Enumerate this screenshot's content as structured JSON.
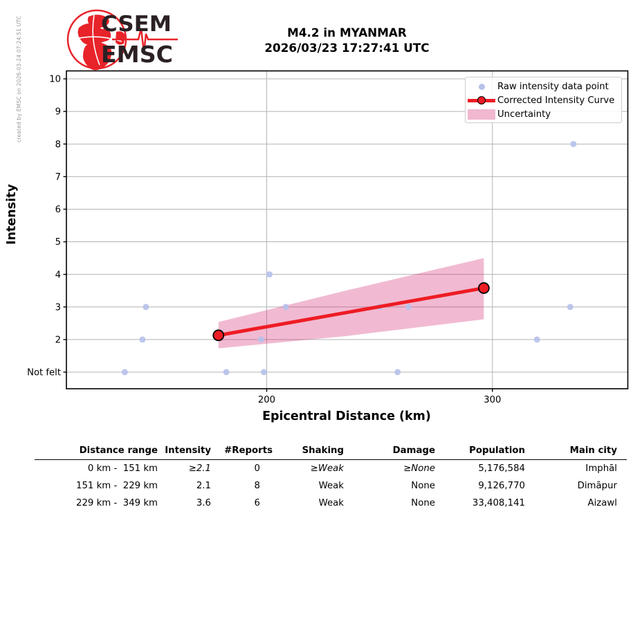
{
  "meta": {
    "created_by": "created by EMSC on 2026-03-24 07:24:51 UTC"
  },
  "logo": {
    "line1": "CSEM",
    "line2": "EMSC"
  },
  "title": {
    "line1": "M4.2 in MYANMAR",
    "line2": "2026/03/23 17:27:41 UTC"
  },
  "colors": {
    "raw_point": "#b7c1ea",
    "curve": "#ee1c24",
    "band": "rgba(208,28,105,0.30)",
    "band_legend": "#f1b8d0",
    "grid": "#b3b3b3",
    "frame": "#000000",
    "logo_red": "#e8232a",
    "logo_text": "#2b2124"
  },
  "chart_data": {
    "type": "scatter",
    "title": "M4.2 in MYANMAR 2026/03/23 17:27:41 UTC",
    "xlabel": "Epicentral Distance (km)",
    "ylabel": "Intensity",
    "x_scale": "log",
    "x_range_km": [
      140,
      383
    ],
    "y_range": [
      0.5,
      10.2
    ],
    "grid": true,
    "legend_position": "upper right",
    "x_ticks": [
      {
        "value": 200,
        "label": "200"
      },
      {
        "value": 300,
        "label": "300"
      }
    ],
    "y_ticks": [
      {
        "value": 1,
        "label": "Not felt"
      },
      {
        "value": 2,
        "label": "2"
      },
      {
        "value": 3,
        "label": "3"
      },
      {
        "value": 4,
        "label": "4"
      },
      {
        "value": 5,
        "label": "5"
      },
      {
        "value": 6,
        "label": "6"
      },
      {
        "value": 7,
        "label": "7"
      },
      {
        "value": 8,
        "label": "8"
      },
      {
        "value": 9,
        "label": "9"
      },
      {
        "value": 10,
        "label": "10"
      }
    ],
    "legend": [
      {
        "label": "Raw intensity data point",
        "type": "dot"
      },
      {
        "label": "Corrected Intensity Curve",
        "type": "line-marker"
      },
      {
        "label": "Uncertainty",
        "type": "patch"
      }
    ],
    "raw_points": [
      [
        155,
        1
      ],
      [
        160,
        2
      ],
      [
        161,
        3
      ],
      [
        186,
        1
      ],
      [
        198,
        2
      ],
      [
        199,
        1
      ],
      [
        201,
        4
      ],
      [
        207,
        3
      ],
      [
        245,
        3
      ],
      [
        253,
        1
      ],
      [
        258,
        3
      ],
      [
        325,
        2
      ],
      [
        345,
        3
      ],
      [
        347,
        8
      ]
    ],
    "corrected_curve": [
      [
        183.4,
        2.13
      ],
      [
        295.4,
        3.58
      ]
    ],
    "uncertainty_band": {
      "upper": [
        [
          183.4,
          2.54
        ],
        [
          231,
          3.51
        ],
        [
          295.4,
          4.5
        ]
      ],
      "lower": [
        [
          183.4,
          1.73
        ],
        [
          231,
          2.11
        ],
        [
          295.4,
          2.62
        ]
      ]
    }
  },
  "table": {
    "headers": [
      "Distance range",
      "Intensity",
      "#Reports",
      "Shaking",
      "Damage",
      "Population",
      "Main city"
    ],
    "rows": [
      {
        "distance_range": "0 km -  151 km",
        "intensity": "≥2.1",
        "reports": "0",
        "shaking": "≥Weak",
        "damage": "≥None",
        "population": "5,176,584",
        "main_city": "Imphāl",
        "extrapolated": true
      },
      {
        "distance_range": "151 km -  229 km",
        "intensity": "2.1",
        "reports": "8",
        "shaking": "Weak",
        "damage": "None",
        "population": "9,126,770",
        "main_city": "Dimāpur",
        "extrapolated": false
      },
      {
        "distance_range": "229 km -  349 km",
        "intensity": "3.6",
        "reports": "6",
        "shaking": "Weak",
        "damage": "None",
        "population": "33,408,141",
        "main_city": "Aizawl",
        "extrapolated": false
      }
    ]
  }
}
